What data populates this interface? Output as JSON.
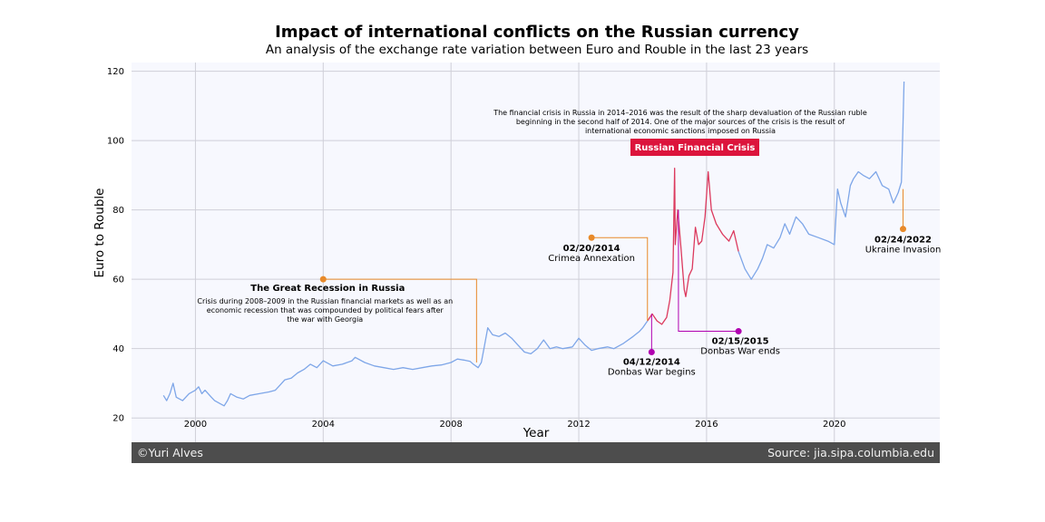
{
  "title": "Impact of international conflicts on the Russian currency",
  "subtitle": "An analysis of the exchange rate variation between Euro and Rouble in the last 23 years",
  "footer": {
    "credit": "©Yuri Alves",
    "source": "Source: jia.sipa.columbia.edu"
  },
  "colors": {
    "line": "#7ea6e8",
    "crisis": "#dc3a5e",
    "event": "#e88a2a",
    "donbas": "#b000b0",
    "badge": "#dc143c",
    "plot_bg": "#f7f8fe",
    "grid": "#cfcfd8"
  },
  "chart_data": {
    "type": "line",
    "xlabel": "Year",
    "ylabel": "Euro to Rouble",
    "xlim": [
      1998,
      2023.3
    ],
    "ylim": [
      13,
      122.5
    ],
    "xticks": [
      "2000",
      "2004",
      "2008",
      "2012",
      "2016",
      "2020"
    ],
    "yticks": [
      "20",
      "40",
      "60",
      "80",
      "100",
      "120"
    ],
    "grid": true,
    "series": [
      {
        "segment": "before-crisis",
        "points": [
          [
            1999.0,
            26.5
          ],
          [
            1999.1,
            25
          ],
          [
            1999.2,
            27
          ],
          [
            1999.3,
            30
          ],
          [
            1999.4,
            26
          ],
          [
            1999.6,
            25
          ],
          [
            1999.8,
            27
          ],
          [
            2000.0,
            28
          ],
          [
            2000.1,
            29
          ],
          [
            2000.2,
            27
          ],
          [
            2000.3,
            28
          ],
          [
            2000.5,
            26
          ],
          [
            2000.6,
            25
          ],
          [
            2000.8,
            24
          ],
          [
            2000.9,
            23.5
          ],
          [
            2001.0,
            25
          ],
          [
            2001.1,
            27
          ],
          [
            2001.3,
            26
          ],
          [
            2001.5,
            25.5
          ],
          [
            2001.7,
            26.5
          ],
          [
            2002.0,
            27
          ],
          [
            2002.3,
            27.5
          ],
          [
            2002.5,
            28
          ],
          [
            2002.6,
            29
          ],
          [
            2002.8,
            31
          ],
          [
            2003.0,
            31.5
          ],
          [
            2003.2,
            33
          ],
          [
            2003.4,
            34
          ],
          [
            2003.6,
            35.5
          ],
          [
            2003.8,
            34.5
          ],
          [
            2004.0,
            36.5
          ],
          [
            2004.3,
            35
          ],
          [
            2004.6,
            35.5
          ],
          [
            2004.9,
            36.5
          ],
          [
            2005.0,
            37.5
          ],
          [
            2005.3,
            36
          ],
          [
            2005.6,
            35
          ],
          [
            2005.9,
            34.5
          ],
          [
            2006.2,
            34
          ],
          [
            2006.5,
            34.5
          ],
          [
            2006.8,
            34
          ],
          [
            2007.1,
            34.5
          ],
          [
            2007.4,
            35
          ],
          [
            2007.7,
            35.3
          ],
          [
            2008.0,
            36
          ],
          [
            2008.2,
            37
          ],
          [
            2008.4,
            36.7
          ],
          [
            2008.6,
            36.3
          ],
          [
            2008.7,
            35.5
          ],
          [
            2008.85,
            34.5
          ],
          [
            2008.95,
            36
          ],
          [
            2009.05,
            41
          ],
          [
            2009.15,
            46
          ],
          [
            2009.3,
            44
          ],
          [
            2009.5,
            43.5
          ],
          [
            2009.7,
            44.5
          ],
          [
            2009.9,
            43
          ],
          [
            2010.1,
            41
          ],
          [
            2010.3,
            39
          ],
          [
            2010.5,
            38.5
          ],
          [
            2010.7,
            40
          ],
          [
            2010.9,
            42.5
          ],
          [
            2011.1,
            40
          ],
          [
            2011.3,
            40.5
          ],
          [
            2011.5,
            40
          ],
          [
            2011.8,
            40.5
          ],
          [
            2012.0,
            43
          ],
          [
            2012.2,
            41
          ],
          [
            2012.4,
            39.5
          ],
          [
            2012.6,
            40
          ],
          [
            2012.9,
            40.5
          ],
          [
            2013.1,
            40
          ],
          [
            2013.4,
            41.5
          ],
          [
            2013.7,
            43.5
          ],
          [
            2013.9,
            45
          ],
          [
            2014.0,
            46
          ],
          [
            2014.15,
            48
          ]
        ]
      },
      {
        "segment": "financial-crisis",
        "points": [
          [
            2014.15,
            48
          ],
          [
            2014.3,
            50
          ],
          [
            2014.45,
            48
          ],
          [
            2014.6,
            47
          ],
          [
            2014.75,
            49
          ],
          [
            2014.85,
            54
          ],
          [
            2014.95,
            62
          ],
          [
            2015.0,
            92
          ],
          [
            2015.02,
            70
          ],
          [
            2015.1,
            80
          ],
          [
            2015.2,
            69
          ],
          [
            2015.3,
            57
          ],
          [
            2015.35,
            55
          ],
          [
            2015.45,
            61
          ],
          [
            2015.55,
            63
          ],
          [
            2015.65,
            75
          ],
          [
            2015.75,
            70
          ],
          [
            2015.85,
            71
          ],
          [
            2015.95,
            78
          ],
          [
            2016.05,
            91
          ],
          [
            2016.15,
            80
          ],
          [
            2016.3,
            76
          ],
          [
            2016.5,
            73
          ],
          [
            2016.7,
            71
          ],
          [
            2016.85,
            74
          ],
          [
            2017.0,
            68
          ]
        ]
      },
      {
        "segment": "after-crisis",
        "points": [
          [
            2017.0,
            68
          ],
          [
            2017.2,
            63
          ],
          [
            2017.4,
            60
          ],
          [
            2017.6,
            63
          ],
          [
            2017.75,
            66
          ],
          [
            2017.9,
            70
          ],
          [
            2018.1,
            69
          ],
          [
            2018.3,
            72
          ],
          [
            2018.45,
            76
          ],
          [
            2018.6,
            73
          ],
          [
            2018.8,
            78
          ],
          [
            2019.0,
            76
          ],
          [
            2019.2,
            73
          ],
          [
            2019.5,
            72
          ],
          [
            2019.8,
            71
          ],
          [
            2020.0,
            70
          ],
          [
            2020.1,
            86
          ],
          [
            2020.2,
            82
          ],
          [
            2020.35,
            78
          ],
          [
            2020.5,
            87
          ],
          [
            2020.6,
            89
          ],
          [
            2020.75,
            91
          ],
          [
            2020.9,
            90
          ],
          [
            2021.1,
            89
          ],
          [
            2021.3,
            91
          ],
          [
            2021.5,
            87
          ],
          [
            2021.7,
            86
          ],
          [
            2021.85,
            82
          ],
          [
            2022.0,
            85
          ],
          [
            2022.1,
            88
          ],
          [
            2022.15,
            105
          ],
          [
            2022.18,
            117
          ]
        ]
      }
    ],
    "annotations": [
      {
        "date": "02/20/2014",
        "label": "Crimea Annexation",
        "x": 2012.4,
        "y": 72,
        "target": [
          2014.15,
          48
        ]
      },
      {
        "date": "04/12/2014",
        "label": "Donbas War begins",
        "x": 2014.28,
        "y": 39,
        "target": [
          2014.28,
          50
        ]
      },
      {
        "date": "02/15/2015",
        "label": "Donbas War ends",
        "x": 2017.0,
        "y": 45,
        "target": [
          2015.12,
          80
        ]
      },
      {
        "date": "02/24/2022",
        "label": "Ukraine Invasion",
        "x": 2022.15,
        "y": 74.5,
        "target": [
          2022.15,
          86
        ]
      }
    ],
    "recession": {
      "title": "The Great Recession in Russia",
      "x": 2004.0,
      "y": 60,
      "target": [
        2008.8,
        36
      ],
      "text": [
        "Crisis during 2008–2009 in the Russian financial markets as well as an",
        "economic recession that was compounded by political fears after",
        "the war with Georgia"
      ]
    },
    "crisis_note": {
      "badge": "Russian Financial Crisis",
      "text": [
        "The financial crisis in Russia in 2014–2016 was the result of the sharp devaluation of the Russian ruble",
        "beginning in the  second half of 2014. One of the major sources of the crisis is the result of",
        "international economic sanctions imposed on Russia"
      ]
    }
  }
}
